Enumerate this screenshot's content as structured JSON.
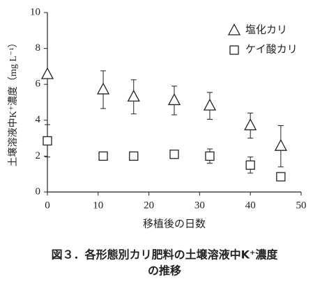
{
  "chart_data": {
    "type": "scatter",
    "xlabel": "移植後の日数",
    "ylabel": "土壌溶液中K⁺濃度（mg L⁻¹）",
    "caption": [
      "図３．各形態別カリ肥料の土壌溶液中K⁺濃度",
      "の推移"
    ],
    "xlim": [
      0,
      50
    ],
    "xticks": [
      0,
      10,
      20,
      30,
      40,
      50
    ],
    "ylim": [
      0,
      10
    ],
    "yticks": [
      0,
      2,
      4,
      6,
      8,
      10
    ],
    "legend": "upper right",
    "series": [
      {
        "name": "塩化カリ",
        "marker": "triangle",
        "color": "#222",
        "x": [
          0,
          11,
          17,
          25,
          32,
          40,
          46
        ],
        "values": [
          6.55,
          5.7,
          5.3,
          5.1,
          4.8,
          3.7,
          2.55
        ],
        "errors": [
          null,
          1.05,
          0.95,
          0.8,
          0.75,
          0.7,
          1.15
        ]
      },
      {
        "name": "ケイ酸カリ",
        "marker": "square",
        "color": "#222",
        "x": [
          0,
          11,
          17,
          25,
          32,
          40,
          46
        ],
        "values": [
          2.85,
          2.0,
          2.0,
          2.1,
          2.0,
          1.5,
          0.85
        ],
        "errors": [
          0.9,
          0.15,
          0.1,
          0.2,
          0.4,
          0.45,
          0.1
        ]
      }
    ]
  }
}
